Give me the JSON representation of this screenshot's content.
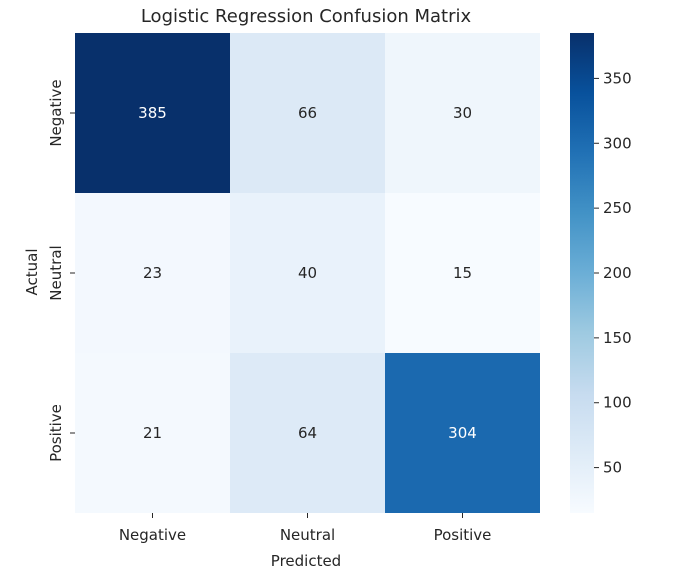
{
  "chart_data": {
    "type": "heatmap",
    "title": "Logistic Regression Confusion Matrix",
    "xlabel": "Predicted",
    "ylabel": "Actual",
    "x_categories": [
      "Negative",
      "Neutral",
      "Positive"
    ],
    "y_categories": [
      "Negative",
      "Neutral",
      "Positive"
    ],
    "values": [
      [
        385,
        66,
        30
      ],
      [
        23,
        40,
        15
      ],
      [
        21,
        64,
        304
      ]
    ],
    "colormap": "Blues",
    "colorbar": {
      "min": 15,
      "max": 385,
      "ticks": [
        50,
        100,
        150,
        200,
        250,
        300,
        350
      ]
    },
    "annotation_colors": {
      "dark": "#262626",
      "light": "#ffffff"
    }
  }
}
